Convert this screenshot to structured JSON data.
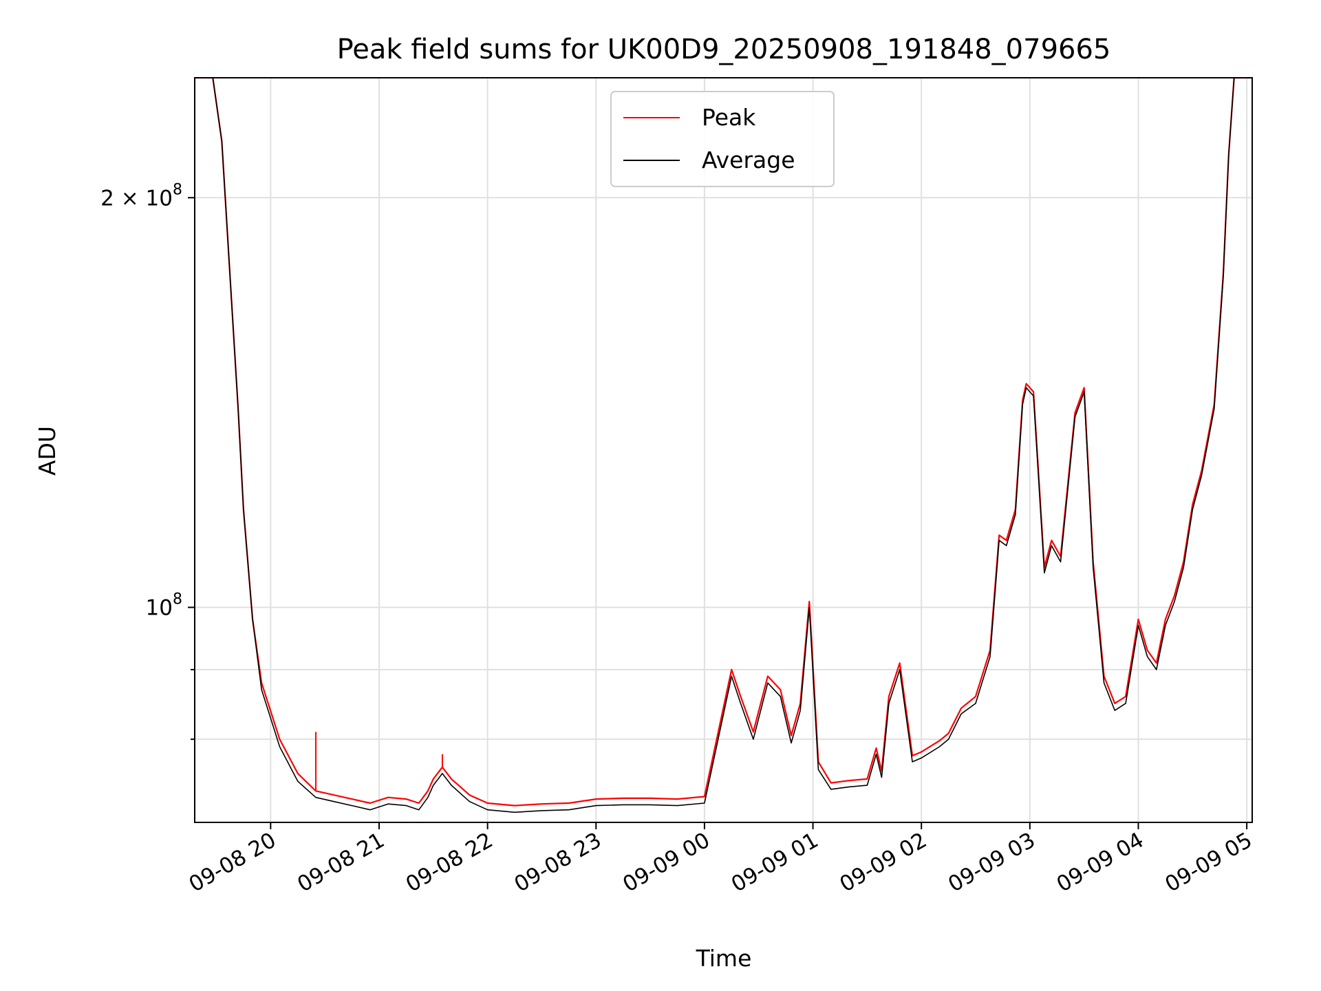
{
  "chart_data": {
    "type": "line",
    "title": "Peak field sums for UK00D9_20250908_191848_079665",
    "xlabel": "Time",
    "ylabel": "ADU",
    "y_scale": "log",
    "ylim": [
      69500000,
      245000000
    ],
    "xlim": [
      "2025-09-08 19:18",
      "2025-09-09 05:03"
    ],
    "x_ticks": [
      {
        "t": "2025-09-08 20:00",
        "label": "09-08 20"
      },
      {
        "t": "2025-09-08 21:00",
        "label": "09-08 21"
      },
      {
        "t": "2025-09-08 22:00",
        "label": "09-08 22"
      },
      {
        "t": "2025-09-08 23:00",
        "label": "09-08 23"
      },
      {
        "t": "2025-09-09 00:00",
        "label": "09-09 00"
      },
      {
        "t": "2025-09-09 01:00",
        "label": "09-09 01"
      },
      {
        "t": "2025-09-09 02:00",
        "label": "09-09 02"
      },
      {
        "t": "2025-09-09 03:00",
        "label": "09-09 03"
      },
      {
        "t": "2025-09-09 04:00",
        "label": "09-09 04"
      },
      {
        "t": "2025-09-09 05:00",
        "label": "09-09 05"
      }
    ],
    "y_major_ticks": [
      {
        "value": 100000000,
        "base": "10",
        "exp": "8"
      },
      {
        "value": 200000000,
        "base": "2 × 10",
        "exp": "8"
      }
    ],
    "y_minor_ticks": [
      80000000,
      90000000
    ],
    "grid": true,
    "legend": {
      "position": "top-center",
      "entries": [
        "Peak",
        "Average"
      ]
    },
    "series": [
      {
        "name": "Average",
        "color": "#000000",
        "x": [
          "2025-09-08 19:18",
          "2025-09-08 19:28",
          "2025-09-08 19:33",
          "2025-09-08 19:37",
          "2025-09-08 19:42",
          "2025-09-08 19:45",
          "2025-09-08 19:50",
          "2025-09-08 19:55",
          "2025-09-08 20:05",
          "2025-09-08 20:15",
          "2025-09-08 20:25",
          "2025-09-08 20:35",
          "2025-09-08 20:45",
          "2025-09-08 20:55",
          "2025-09-08 21:05",
          "2025-09-08 21:15",
          "2025-09-08 21:22",
          "2025-09-08 21:27",
          "2025-09-08 21:30",
          "2025-09-08 21:35",
          "2025-09-08 21:40",
          "2025-09-08 21:50",
          "2025-09-08 22:00",
          "2025-09-08 22:15",
          "2025-09-08 22:30",
          "2025-09-08 22:45",
          "2025-09-08 23:00",
          "2025-09-08 23:15",
          "2025-09-08 23:30",
          "2025-09-08 23:45",
          "2025-09-09 00:00",
          "2025-09-09 00:15",
          "2025-09-09 00:20",
          "2025-09-09 00:27",
          "2025-09-09 00:35",
          "2025-09-09 00:42",
          "2025-09-09 00:48",
          "2025-09-09 00:53",
          "2025-09-09 00:58",
          "2025-09-09 01:03",
          "2025-09-09 01:10",
          "2025-09-09 01:20",
          "2025-09-09 01:30",
          "2025-09-09 01:35",
          "2025-09-09 01:38",
          "2025-09-09 01:42",
          "2025-09-09 01:48",
          "2025-09-09 01:55",
          "2025-09-09 02:00",
          "2025-09-09 02:10",
          "2025-09-09 02:15",
          "2025-09-09 02:22",
          "2025-09-09 02:30",
          "2025-09-09 02:38",
          "2025-09-09 02:43",
          "2025-09-09 02:47",
          "2025-09-09 02:52",
          "2025-09-09 02:56",
          "2025-09-09 02:58",
          "2025-09-09 03:02",
          "2025-09-09 03:08",
          "2025-09-09 03:12",
          "2025-09-09 03:17",
          "2025-09-09 03:25",
          "2025-09-09 03:30",
          "2025-09-09 03:35",
          "2025-09-09 03:41",
          "2025-09-09 03:47",
          "2025-09-09 03:53",
          "2025-09-09 04:00",
          "2025-09-09 04:05",
          "2025-09-09 04:10",
          "2025-09-09 04:15",
          "2025-09-09 04:20",
          "2025-09-09 04:25",
          "2025-09-09 04:30",
          "2025-09-09 04:35",
          "2025-09-09 04:42",
          "2025-09-09 04:47",
          "2025-09-09 04:50",
          "2025-09-09 04:53",
          "2025-09-09 05:03"
        ],
        "y": [
          245000000,
          245000000,
          220000000,
          180000000,
          140000000,
          118000000,
          98000000,
          87000000,
          79000000,
          74500000,
          72500000,
          72000000,
          71500000,
          71000000,
          71700000,
          71500000,
          71000000,
          72500000,
          74000000,
          75500000,
          74000000,
          72000000,
          71000000,
          70700000,
          70900000,
          71000000,
          71500000,
          71600000,
          71600000,
          71500000,
          71800000,
          89000000,
          85000000,
          80000000,
          88000000,
          86000000,
          79500000,
          84000000,
          100000000,
          76000000,
          73500000,
          73800000,
          74000000,
          78000000,
          75000000,
          85000000,
          90000000,
          77000000,
          77500000,
          79000000,
          80000000,
          83500000,
          85000000,
          92000000,
          112000000,
          111000000,
          117000000,
          141000000,
          145000000,
          143000000,
          106000000,
          111000000,
          108000000,
          138000000,
          144000000,
          107000000,
          88000000,
          84000000,
          85000000,
          97000000,
          92000000,
          90000000,
          97000000,
          101000000,
          107000000,
          118000000,
          125000000,
          140000000,
          175000000,
          215000000,
          245000000,
          245000000
        ]
      },
      {
        "name": "Peak",
        "color": "#ff0000",
        "x": [
          "2025-09-08 19:18",
          "2025-09-08 19:28",
          "2025-09-08 19:33",
          "2025-09-08 19:37",
          "2025-09-08 19:42",
          "2025-09-08 19:45",
          "2025-09-08 19:50",
          "2025-09-08 19:55",
          "2025-09-08 20:05",
          "2025-09-08 20:15",
          "2025-09-08 20:25",
          "2025-09-08 20:35",
          "2025-09-08 20:45",
          "2025-09-08 20:55",
          "2025-09-08 21:05",
          "2025-09-08 21:15",
          "2025-09-08 21:22",
          "2025-09-08 21:27",
          "2025-09-08 21:30",
          "2025-09-08 21:35",
          "2025-09-08 21:40",
          "2025-09-08 21:50",
          "2025-09-08 22:00",
          "2025-09-08 22:15",
          "2025-09-08 22:30",
          "2025-09-08 22:45",
          "2025-09-08 23:00",
          "2025-09-08 23:15",
          "2025-09-08 23:30",
          "2025-09-08 23:45",
          "2025-09-09 00:00",
          "2025-09-09 00:15",
          "2025-09-09 00:20",
          "2025-09-09 00:27",
          "2025-09-09 00:35",
          "2025-09-09 00:42",
          "2025-09-09 00:48",
          "2025-09-09 00:53",
          "2025-09-09 00:58",
          "2025-09-09 01:03",
          "2025-09-09 01:10",
          "2025-09-09 01:20",
          "2025-09-09 01:30",
          "2025-09-09 01:35",
          "2025-09-09 01:38",
          "2025-09-09 01:42",
          "2025-09-09 01:48",
          "2025-09-09 01:55",
          "2025-09-09 02:00",
          "2025-09-09 02:10",
          "2025-09-09 02:15",
          "2025-09-09 02:22",
          "2025-09-09 02:30",
          "2025-09-09 02:38",
          "2025-09-09 02:43",
          "2025-09-09 02:47",
          "2025-09-09 02:52",
          "2025-09-09 02:56",
          "2025-09-09 02:58",
          "2025-09-09 03:02",
          "2025-09-09 03:08",
          "2025-09-09 03:12",
          "2025-09-09 03:17",
          "2025-09-09 03:25",
          "2025-09-09 03:30",
          "2025-09-09 03:35",
          "2025-09-09 03:41",
          "2025-09-09 03:47",
          "2025-09-09 03:53",
          "2025-09-09 04:00",
          "2025-09-09 04:05",
          "2025-09-09 04:10",
          "2025-09-09 04:15",
          "2025-09-09 04:20",
          "2025-09-09 04:25",
          "2025-09-09 04:30",
          "2025-09-09 04:35",
          "2025-09-09 04:42",
          "2025-09-09 04:47",
          "2025-09-09 04:50",
          "2025-09-09 04:53",
          "2025-09-09 05:03"
        ],
        "y": [
          245000000,
          245000000,
          220000000,
          180000000,
          140000000,
          118000000,
          98000000,
          88000000,
          80000000,
          75500000,
          73300000,
          72800000,
          72300000,
          71800000,
          72500000,
          72300000,
          71800000,
          73300000,
          74800000,
          76300000,
          74800000,
          72800000,
          71800000,
          71500000,
          71700000,
          71800000,
          72300000,
          72400000,
          72400000,
          72300000,
          72600000,
          90000000,
          86000000,
          81000000,
          89000000,
          87000000,
          80500000,
          85000000,
          101000000,
          77000000,
          74300000,
          74600000,
          74800000,
          78800000,
          75800000,
          86000000,
          91000000,
          77800000,
          78300000,
          79800000,
          80800000,
          84300000,
          86000000,
          93000000,
          113000000,
          112000000,
          118000000,
          142000000,
          146000000,
          144000000,
          107000000,
          112000000,
          109000000,
          139000000,
          145000000,
          108000000,
          89000000,
          85000000,
          86000000,
          98000000,
          93000000,
          91000000,
          98000000,
          102000000,
          108000000,
          119000000,
          126000000,
          141000000,
          176000000,
          215000000,
          245000000,
          245000000
        ],
        "spikes": [
          {
            "t": "2025-09-08 20:25",
            "value": 81000000
          },
          {
            "t": "2025-09-08 21:35",
            "value": 78000000
          }
        ]
      }
    ]
  }
}
